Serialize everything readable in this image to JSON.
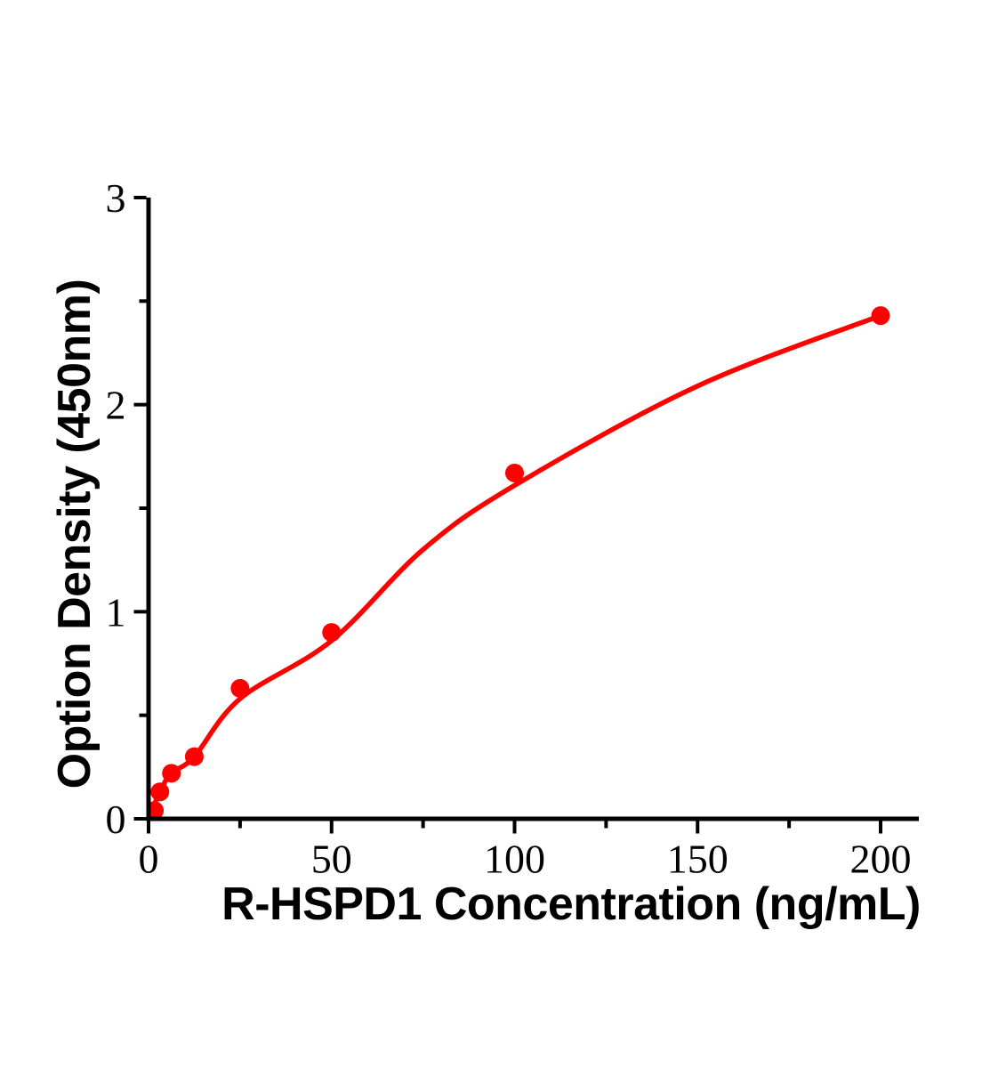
{
  "figure": {
    "background": "#ffffff",
    "accent_color": "#ff0000",
    "axis_color": "#000000"
  },
  "chart_data": {
    "type": "scatter",
    "title": "",
    "xlabel": "R-HSPD1 Concentration (ng/mL)",
    "ylabel": "Option Density (450nm)",
    "xlim": [
      0,
      210.5
    ],
    "ylim": [
      0,
      3
    ],
    "x_major_ticks": [
      0,
      50,
      100,
      150,
      200
    ],
    "x_minor_ticks": [
      25,
      75,
      125,
      175
    ],
    "y_major_ticks": [
      0,
      1,
      2,
      3
    ],
    "y_minor_ticks": [
      0.5,
      1.5,
      2.5
    ],
    "grid": false,
    "legend": false,
    "series": [
      {
        "name": "standard-points",
        "type": "scatter",
        "color": "#ff0000",
        "marker": "circle",
        "points": [
          [
            1.6,
            0.04
          ],
          [
            3.1,
            0.13
          ],
          [
            6.25,
            0.22
          ],
          [
            12.5,
            0.3
          ],
          [
            25,
            0.63
          ],
          [
            50,
            0.9
          ],
          [
            100,
            1.67
          ],
          [
            200,
            2.43
          ]
        ]
      },
      {
        "name": "fit-curve",
        "type": "line",
        "color": "#ff0000",
        "points": [
          [
            0,
            0
          ],
          [
            3.1,
            0.13
          ],
          [
            6.25,
            0.22
          ],
          [
            12.5,
            0.3
          ],
          [
            25,
            0.58
          ],
          [
            50,
            0.86
          ],
          [
            75,
            1.3
          ],
          [
            100,
            1.61
          ],
          [
            150,
            2.09
          ],
          [
            200,
            2.43
          ]
        ]
      }
    ]
  }
}
